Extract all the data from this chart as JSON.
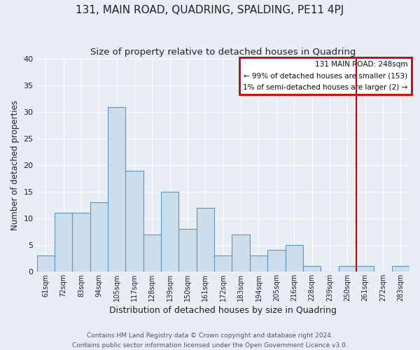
{
  "title": "131, MAIN ROAD, QUADRING, SPALDING, PE11 4PJ",
  "subtitle": "Size of property relative to detached houses in Quadring",
  "xlabel": "Distribution of detached houses by size in Quadring",
  "ylabel": "Number of detached properties",
  "bar_labels": [
    "61sqm",
    "72sqm",
    "83sqm",
    "94sqm",
    "105sqm",
    "117sqm",
    "128sqm",
    "139sqm",
    "150sqm",
    "161sqm",
    "172sqm",
    "183sqm",
    "194sqm",
    "205sqm",
    "216sqm",
    "228sqm",
    "239sqm",
    "250sqm",
    "261sqm",
    "272sqm",
    "283sqm"
  ],
  "bar_values": [
    3,
    11,
    11,
    13,
    31,
    19,
    7,
    15,
    8,
    12,
    3,
    7,
    3,
    4,
    5,
    1,
    0,
    1,
    1,
    0,
    1
  ],
  "bar_color": "#ccdded",
  "bar_edge_color": "#5599bb",
  "ylim": [
    0,
    40
  ],
  "yticks": [
    0,
    5,
    10,
    15,
    20,
    25,
    30,
    35,
    40
  ],
  "property_line_index": 17,
  "property_line_color": "#cc0000",
  "legend_title": "131 MAIN ROAD: 248sqm",
  "legend_line1": "← 99% of detached houses are smaller (153)",
  "legend_line2": "1% of semi-detached houses are larger (2) →",
  "footer_line1": "Contains HM Land Registry data © Crown copyright and database right 2024.",
  "footer_line2": "Contains public sector information licensed under the Open Government Licence v3.0.",
  "background_color": "#e8eef4",
  "plot_background_color": "#e8eef4",
  "title_fontsize": 11,
  "subtitle_fontsize": 9.5
}
